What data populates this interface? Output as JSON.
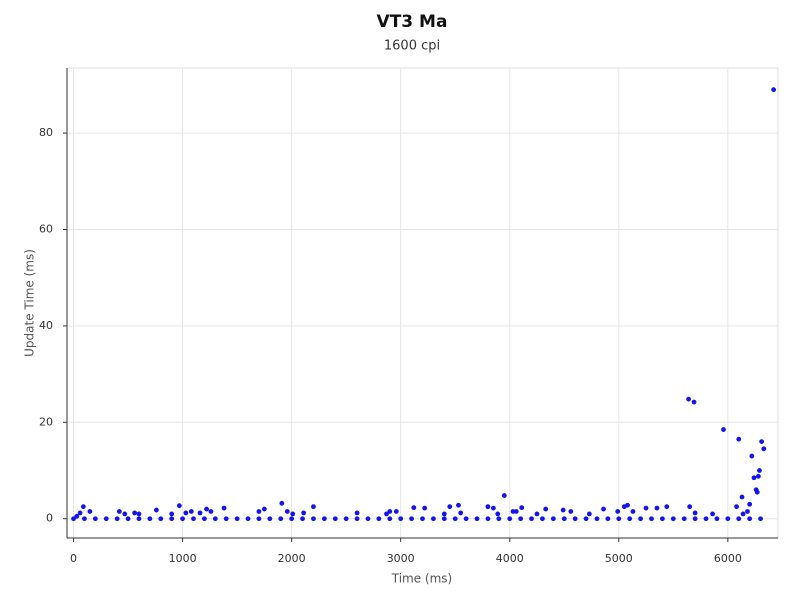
{
  "chart_data": {
    "type": "scatter",
    "title": "VT3 Ma",
    "subtitle": "1600 cpi",
    "x_label": "Time (ms)",
    "y_label": "Update Time (ms)",
    "color": "#1414f0",
    "grid": true,
    "xlim": [
      -60,
      6460
    ],
    "ylim": [
      -4,
      93.5
    ],
    "xticks": [
      0,
      1000,
      2000,
      3000,
      4000,
      5000,
      6000
    ],
    "yticks": [
      0,
      20,
      40,
      60,
      80
    ],
    "x": [
      0,
      100,
      200,
      300,
      400,
      500,
      600,
      700,
      800,
      900,
      1000,
      1100,
      1200,
      1300,
      1400,
      1500,
      1600,
      1700,
      1800,
      1900,
      2000,
      2100,
      2200,
      2300,
      2400,
      2500,
      2600,
      2700,
      2800,
      2900,
      3000,
      3100,
      3200,
      3300,
      3400,
      3500,
      3600,
      3700,
      3800,
      3900,
      4000,
      4100,
      4200,
      4300,
      4400,
      4500,
      4600,
      4700,
      4800,
      4900,
      5000,
      5100,
      5200,
      5300,
      5400,
      5500,
      5600,
      5700,
      5800,
      5900,
      6000,
      6100,
      6200,
      6300,
      30,
      60,
      90,
      150,
      420,
      470,
      560,
      600,
      760,
      900,
      970,
      1030,
      1080,
      1160,
      1220,
      1260,
      1380,
      1700,
      1750,
      1910,
      1960,
      2010,
      2110,
      2200,
      2600,
      2870,
      2900,
      2960,
      3120,
      3220,
      3400,
      3450,
      3530,
      3550,
      3800,
      3850,
      3890,
      3950,
      4030,
      4060,
      4110,
      4250,
      4330,
      4490,
      4560,
      4730,
      4860,
      4990,
      5050,
      5080,
      5130,
      5250,
      5350,
      5440,
      5640,
      5690,
      5650,
      5700,
      5860,
      5960,
      6100,
      6130,
      6080,
      6140,
      6180,
      6200,
      6220,
      6240,
      6260,
      6270,
      6280,
      6290,
      6310,
      6330,
      6420
    ],
    "values": [
      0,
      0,
      0,
      0,
      0,
      0,
      0,
      0,
      0,
      0,
      0,
      0,
      0,
      0,
      0,
      0,
      0,
      0,
      0,
      0,
      0,
      0,
      0,
      0,
      0,
      0,
      0,
      0,
      0,
      0,
      0,
      0,
      0,
      0,
      0,
      0,
      0,
      0,
      0,
      0,
      0,
      0,
      0,
      0,
      0,
      0,
      0,
      0,
      0,
      0,
      0,
      0,
      0,
      0,
      0,
      0,
      0,
      0,
      0,
      0,
      0,
      0,
      0,
      0,
      0.5,
      1.2,
      2.5,
      1.5,
      1.5,
      1,
      1.2,
      1,
      1.8,
      1,
      2.7,
      1.2,
      1.5,
      1.2,
      2,
      1.5,
      2.2,
      1.5,
      2,
      3.2,
      1.5,
      1,
      1.2,
      2.5,
      1.2,
      1,
      1.5,
      1.5,
      2.3,
      2.2,
      1,
      2.5,
      2.8,
      1.2,
      2.5,
      2.2,
      1,
      4.8,
      1.5,
      1.5,
      2.3,
      1,
      2,
      1.8,
      1.5,
      1,
      2,
      1.5,
      2.5,
      2.8,
      1.5,
      2.2,
      2.2,
      2.5,
      24.8,
      24.2,
      2.5,
      1.2,
      1,
      18.5,
      16.5,
      4.5,
      2.5,
      1,
      1.5,
      3,
      13,
      8.5,
      6,
      5.5,
      8.8,
      10,
      16,
      14.5,
      89
    ]
  }
}
